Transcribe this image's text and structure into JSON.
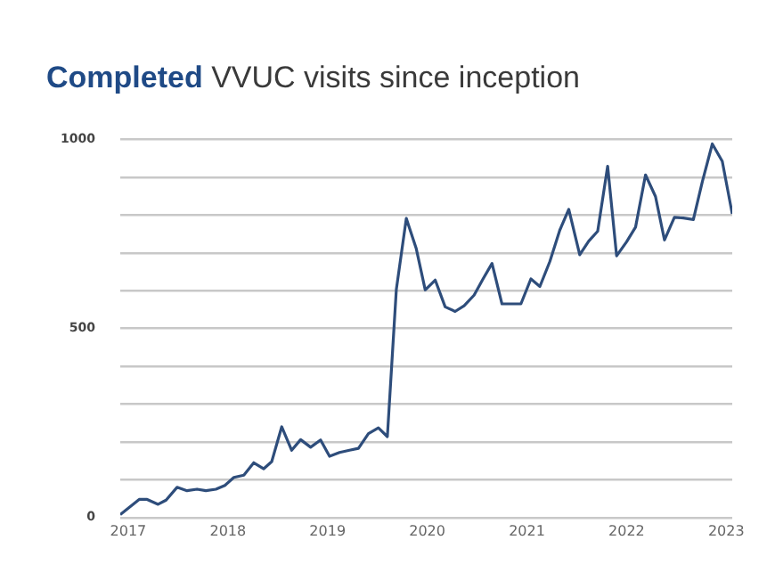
{
  "chart_data": {
    "type": "line",
    "title": "Completed VVUC visits since inception",
    "x": [
      2016.92,
      2017.11,
      2017.19,
      2017.3,
      2017.38,
      2017.49,
      2017.59,
      2017.69,
      2017.78,
      2017.88,
      2017.97,
      2018.06,
      2018.16,
      2018.26,
      2018.36,
      2018.44,
      2018.54,
      2018.64,
      2018.73,
      2018.83,
      2018.93,
      2019.02,
      2019.12,
      2019.22,
      2019.31,
      2019.41,
      2019.51,
      2019.6,
      2019.69,
      2019.79,
      2019.89,
      2019.98,
      2020.08,
      2020.18,
      2020.28,
      2020.37,
      2020.47,
      2020.56,
      2020.65,
      2020.75,
      2020.84,
      2020.94,
      2021.04,
      2021.13,
      2021.23,
      2021.33,
      2021.42,
      2021.53,
      2021.62,
      2021.71,
      2021.81,
      2021.9,
      2022.0,
      2022.09,
      2022.19,
      2022.29,
      2022.38,
      2022.48,
      2022.57,
      2022.67,
      2022.76,
      2022.86,
      2022.96,
      2023.06
    ],
    "series": [
      {
        "color": "#2e4d7b",
        "values": [
          8,
          48,
          48,
          35,
          46,
          80,
          71,
          75,
          71,
          75,
          85,
          106,
          112,
          145,
          129,
          148,
          240,
          178,
          206,
          186,
          205,
          162,
          172,
          178,
          183,
          222,
          237,
          214,
          603,
          791,
          711,
          602,
          628,
          557,
          545,
          560,
          588,
          631,
          672,
          565,
          565,
          565,
          631,
          611,
          677,
          760,
          815,
          695,
          731,
          757,
          929,
          692,
          729,
          768,
          906,
          849,
          734,
          794,
          792,
          788,
          888,
          988,
          942,
          803
        ]
      }
    ],
    "xlim": [
      2016.92,
      2023.06
    ],
    "xticks": [
      2017,
      2018,
      2019,
      2020,
      2021,
      2022,
      2023
    ],
    "ylim": [
      0,
      1000
    ],
    "yticks": [
      0,
      {
        "value": 100,
        "label": null
      },
      {
        "value": 200,
        "label": null
      },
      {
        "value": 300,
        "label": null
      },
      {
        "value": 400,
        "label": null
      },
      500,
      {
        "value": 600,
        "label": null
      },
      {
        "value": 700,
        "label": null
      },
      {
        "value": 800,
        "label": null
      },
      {
        "value": 900,
        "label": null
      },
      1000
    ],
    "grid": "y",
    "legend": false,
    "marker": "none",
    "line_style": "solid"
  }
}
